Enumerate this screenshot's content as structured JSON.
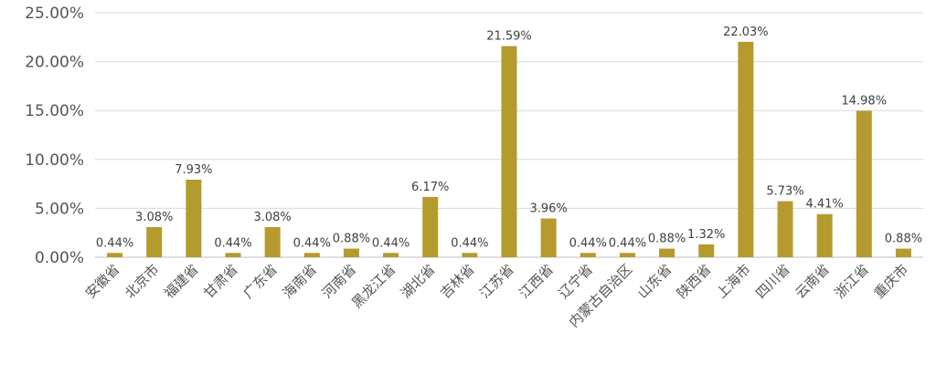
{
  "chart_data": {
    "type": "bar",
    "categories": [
      "安徽省",
      "北京市",
      "福建省",
      "甘肃省",
      "广东省",
      "海南省",
      "河南省",
      "黑龙江省",
      "湖北省",
      "吉林省",
      "江苏省",
      "江西省",
      "辽宁省",
      "内蒙古自治区",
      "山东省",
      "陕西省",
      "上海市",
      "四川省",
      "云南省",
      "浙江省",
      "重庆市"
    ],
    "values": [
      0.44,
      3.08,
      7.93,
      0.44,
      3.08,
      0.44,
      0.88,
      0.44,
      6.17,
      0.44,
      21.59,
      3.96,
      0.44,
      0.44,
      0.88,
      1.32,
      22.03,
      5.73,
      4.41,
      14.98,
      0.88
    ],
    "data_labels": [
      "0.44%",
      "3.08%",
      "7.93%",
      "0.44%",
      "3.08%",
      "0.44%",
      "0.88%",
      "0.44%",
      "6.17%",
      "0.44%",
      "21.59%",
      "3.96%",
      "0.44%",
      "0.44%",
      "0.88%",
      "1.32%",
      "22.03%",
      "5.73%",
      "4.41%",
      "14.98%",
      "0.88%"
    ],
    "yticks": [
      "0.00%",
      "5.00%",
      "10.00%",
      "15.00%",
      "20.00%",
      "25.00%"
    ],
    "ylim": [
      0,
      25
    ],
    "grid": true,
    "legend": "none",
    "title": "",
    "xlabel": "",
    "ylabel": "",
    "colors": {
      "bar": "#b59a2e",
      "grid": "#d9d9d9",
      "text": "#555555"
    }
  }
}
